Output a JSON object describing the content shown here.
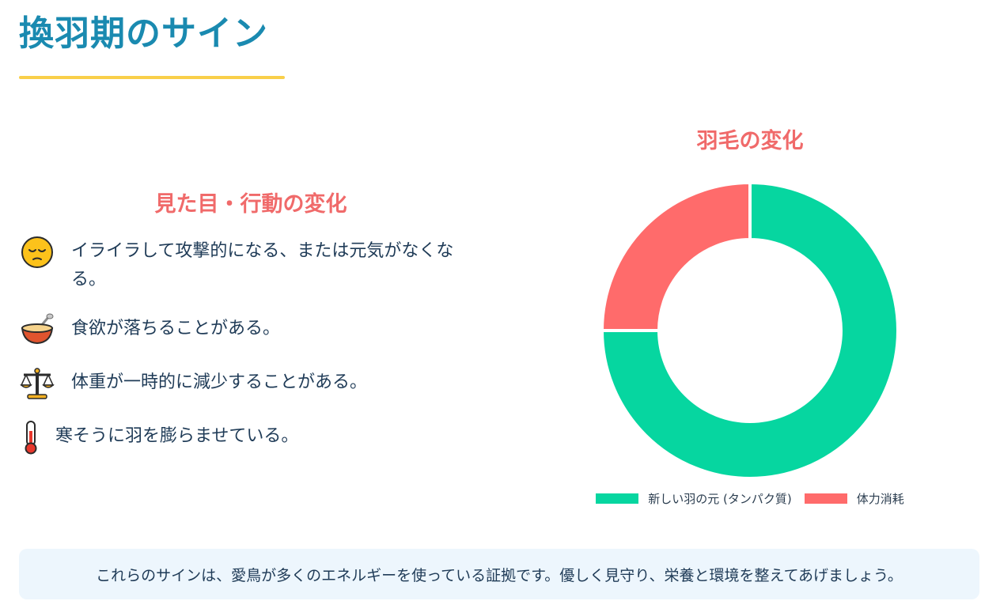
{
  "page": {
    "title": "換羽期のサイン"
  },
  "signs": {
    "heading": "見た目・行動の変化",
    "items": [
      {
        "icon": "pensive-face-icon",
        "text": "イライラして攻撃的になる、または元気がなくなる。"
      },
      {
        "icon": "porridge-bowl-icon",
        "text": "食欲が落ちることがある。"
      },
      {
        "icon": "balance-scale-icon",
        "text": "体重が一時的に減少することがある。"
      },
      {
        "icon": "thermometer-icon",
        "text": "寒そうに羽を膨らませている。"
      }
    ]
  },
  "chart_data": {
    "type": "doughnut",
    "title": "羽毛の変化",
    "categories": [
      "新しい羽の元 (タンパク質)",
      "体力消耗"
    ],
    "values": [
      75,
      25
    ],
    "colors": [
      "#06d6a0",
      "#ff6b6b"
    ],
    "legend_position": "bottom"
  },
  "note": {
    "text": "これらのサインは、愛鳥が多くのエネルギーを使っている証拠です。優しく見守り、栄養と環境を整えてあげましょう。"
  },
  "theme": {
    "title_color": "#1a8ab0",
    "accent_yellow": "#f9cf4a",
    "heading_color": "#f06a6a",
    "note_background": "#edf6fd"
  }
}
